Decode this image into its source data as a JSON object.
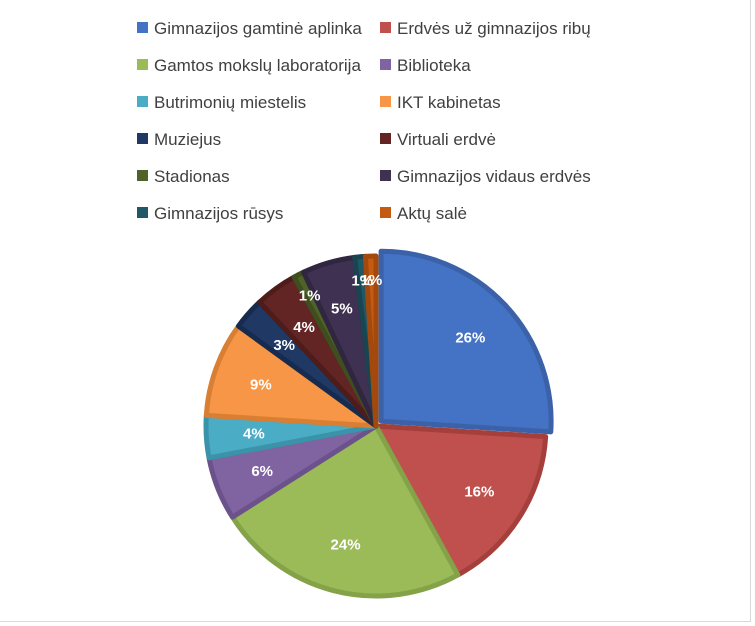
{
  "chart_data": {
    "type": "pie",
    "title": "",
    "legend_position": "top",
    "slices": [
      {
        "name": "Gimnazijos gamtinė aplinka",
        "value": 26,
        "label": "26%",
        "color": "#4472C4",
        "border": "#3B62A8"
      },
      {
        "name": "Erdvės už gimnazijos ribų",
        "value": 16,
        "label": "16%",
        "color": "#C0504D",
        "border": "#A43F3C"
      },
      {
        "name": "Gamtos mokslų laboratorija",
        "value": 24,
        "label": "24%",
        "color": "#9BBB59",
        "border": "#84A248"
      },
      {
        "name": "Biblioteka",
        "value": 6,
        "label": "6%",
        "color": "#8064A2",
        "border": "#6B528A"
      },
      {
        "name": "Butrimonių miestelis",
        "value": 4,
        "label": "4%",
        "color": "#4BACC6",
        "border": "#3B93AA"
      },
      {
        "name": "IKT kabinetas",
        "value": 9,
        "label": "9%",
        "color": "#F79646",
        "border": "#D97F33"
      },
      {
        "name": "Muziejus",
        "value": 3,
        "label": "3%",
        "color": "#1F3864",
        "border": "#172B4E"
      },
      {
        "name": "Virtuali erdvė",
        "value": 4,
        "label": "4%",
        "color": "#632523",
        "border": "#4E1C1A"
      },
      {
        "name": "Stadionas",
        "value": 1,
        "label": "1%",
        "color": "#4F6228",
        "border": "#3E4E1F"
      },
      {
        "name": "Gimnazijos vidaus erdvės",
        "value": 5,
        "label": "5%",
        "color": "#3F3151",
        "border": "#312640"
      },
      {
        "name": "Gimnazijos rūsys",
        "value": 1,
        "label": "1%",
        "color": "#205867",
        "border": "#184551"
      },
      {
        "name": "Aktų salė",
        "value": 1,
        "label": "1%",
        "color": "#C55A11",
        "border": "#A3490D"
      }
    ]
  }
}
